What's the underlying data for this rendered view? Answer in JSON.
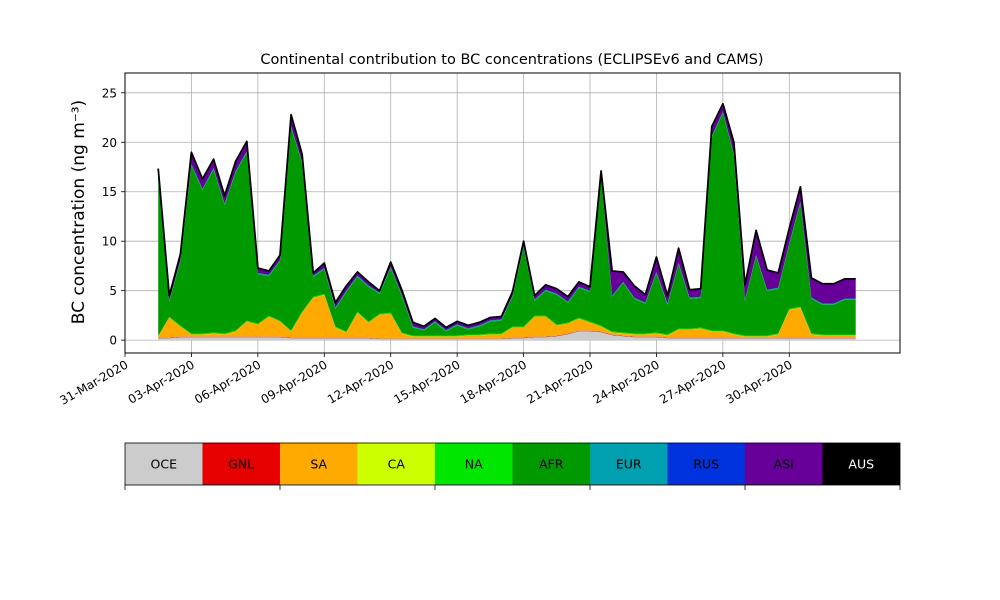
{
  "chart_data": {
    "type": "area",
    "stacked": true,
    "title": "Continental contribution to BC concentrations (ECLIPSEv6 and CAMS)",
    "ylabel": "BC concentration (ng m⁻³)",
    "xlabel": "",
    "ylim": [
      -1.3,
      27
    ],
    "yticks": [
      0,
      5,
      10,
      15,
      20,
      25
    ],
    "xlim": [
      "2020-03-31",
      "2020-05-05"
    ],
    "xticks": [
      "31-Mar-2020",
      "03-Apr-2020",
      "06-Apr-2020",
      "09-Apr-2020",
      "12-Apr-2020",
      "15-Apr-2020",
      "18-Apr-2020",
      "21-Apr-2020",
      "24-Apr-2020",
      "27-Apr-2020",
      "30-Apr-2020"
    ],
    "grid": true,
    "x": [
      "2020-04-01T12:00",
      "2020-04-02",
      "2020-04-02T12:00",
      "2020-04-03",
      "2020-04-03T12:00",
      "2020-04-04",
      "2020-04-04T12:00",
      "2020-04-05",
      "2020-04-05T12:00",
      "2020-04-06",
      "2020-04-06T12:00",
      "2020-04-07",
      "2020-04-07T12:00",
      "2020-04-08",
      "2020-04-08T12:00",
      "2020-04-09",
      "2020-04-09T12:00",
      "2020-04-10",
      "2020-04-10T12:00",
      "2020-04-11",
      "2020-04-11T12:00",
      "2020-04-12",
      "2020-04-12T12:00",
      "2020-04-13",
      "2020-04-13T12:00",
      "2020-04-14",
      "2020-04-14T12:00",
      "2020-04-15",
      "2020-04-15T12:00",
      "2020-04-16",
      "2020-04-16T12:00",
      "2020-04-17",
      "2020-04-17T12:00",
      "2020-04-18",
      "2020-04-18T12:00",
      "2020-04-19",
      "2020-04-19T12:00",
      "2020-04-20",
      "2020-04-20T12:00",
      "2020-04-21",
      "2020-04-21T12:00",
      "2020-04-22",
      "2020-04-22T12:00",
      "2020-04-23",
      "2020-04-23T12:00",
      "2020-04-24",
      "2020-04-24T12:00",
      "2020-04-25",
      "2020-04-25T12:00",
      "2020-04-26",
      "2020-04-26T12:00",
      "2020-04-27",
      "2020-04-27T12:00",
      "2020-04-28",
      "2020-04-28T12:00",
      "2020-04-29",
      "2020-04-29T12:00",
      "2020-04-30",
      "2020-04-30T12:00",
      "2020-05-01",
      "2020-05-01T12:00",
      "2020-05-02",
      "2020-05-02T12:00",
      "2020-05-03"
    ],
    "series": [
      {
        "name": "OCE",
        "color": "#cccccc",
        "values": [
          0.2,
          0.2,
          0.3,
          0.3,
          0.3,
          0.3,
          0.3,
          0.3,
          0.3,
          0.3,
          0.3,
          0.3,
          0.2,
          0.2,
          0.2,
          0.2,
          0.2,
          0.2,
          0.2,
          0.2,
          0.1,
          0.1,
          0.1,
          0.1,
          0.1,
          0.1,
          0.1,
          0.1,
          0.1,
          0.1,
          0.1,
          0.1,
          0.2,
          0.2,
          0.3,
          0.3,
          0.4,
          0.6,
          0.9,
          0.9,
          0.8,
          0.5,
          0.4,
          0.3,
          0.3,
          0.3,
          0.2,
          0.2,
          0.2,
          0.2,
          0.2,
          0.2,
          0.2,
          0.2,
          0.2,
          0.2,
          0.2,
          0.2,
          0.2,
          0.2,
          0.2,
          0.2,
          0.2,
          0.2
        ]
      },
      {
        "name": "GNL",
        "color": "#e60000",
        "values": [
          0.05,
          0.05,
          0.05,
          0.05,
          0.05,
          0.05,
          0.05,
          0.05,
          0.05,
          0.05,
          0.05,
          0.05,
          0.05,
          0.05,
          0.05,
          0.05,
          0.05,
          0.05,
          0.05,
          0.05,
          0.05,
          0.05,
          0.05,
          0.05,
          0.05,
          0.05,
          0.05,
          0.05,
          0.05,
          0.05,
          0.05,
          0.05,
          0.05,
          0.05,
          0.05,
          0.05,
          0.05,
          0.05,
          0.05,
          0.05,
          0.05,
          0.05,
          0.05,
          0.05,
          0.05,
          0.05,
          0.05,
          0.05,
          0.05,
          0.05,
          0.05,
          0.05,
          0.05,
          0.05,
          0.05,
          0.05,
          0.05,
          0.05,
          0.05,
          0.05,
          0.05,
          0.05,
          0.05,
          0.05
        ]
      },
      {
        "name": "SA",
        "color": "#ffaa00",
        "values": [
          0.1,
          2.0,
          1.0,
          0.2,
          0.2,
          0.3,
          0.2,
          0.5,
          1.5,
          1.2,
          2.0,
          1.5,
          0.6,
          2.5,
          4.0,
          4.3,
          1.0,
          0.5,
          2.5,
          1.5,
          2.4,
          2.5,
          0.5,
          0.2,
          0.2,
          0.2,
          0.2,
          0.2,
          0.3,
          0.3,
          0.4,
          0.4,
          1.0,
          1.0,
          2.0,
          2.0,
          1.0,
          1.0,
          1.2,
          0.8,
          0.5,
          0.2,
          0.2,
          0.2,
          0.2,
          0.3,
          0.2,
          0.8,
          0.8,
          0.9,
          0.6,
          0.6,
          0.3,
          0.1,
          0.1,
          0.1,
          0.3,
          2.8,
          3.0,
          0.3,
          0.2,
          0.2,
          0.2,
          0.2
        ]
      },
      {
        "name": "CA",
        "color": "#ccff00",
        "values": [
          0.02,
          0.02,
          0.02,
          0.02,
          0.02,
          0.02,
          0.02,
          0.02,
          0.02,
          0.02,
          0.02,
          0.02,
          0.02,
          0.02,
          0.02,
          0.02,
          0.02,
          0.02,
          0.02,
          0.02,
          0.02,
          0.02,
          0.02,
          0.02,
          0.02,
          0.02,
          0.02,
          0.02,
          0.02,
          0.02,
          0.02,
          0.02,
          0.02,
          0.02,
          0.02,
          0.02,
          0.02,
          0.02,
          0.02,
          0.02,
          0.02,
          0.02,
          0.02,
          0.02,
          0.02,
          0.02,
          0.02,
          0.02,
          0.02,
          0.02,
          0.02,
          0.02,
          0.02,
          0.02,
          0.02,
          0.02,
          0.02,
          0.02,
          0.02,
          0.02,
          0.02,
          0.02,
          0.02,
          0.02
        ]
      },
      {
        "name": "NA",
        "color": "#00e600",
        "values": [
          0.05,
          0.1,
          0.1,
          0.1,
          0.1,
          0.1,
          0.1,
          0.1,
          0.1,
          0.1,
          0.1,
          0.1,
          0.1,
          0.1,
          0.1,
          0.1,
          0.1,
          0.1,
          0.1,
          0.1,
          0.1,
          0.1,
          0.1,
          0.1,
          0.1,
          0.1,
          0.1,
          0.1,
          0.1,
          0.1,
          0.1,
          0.1,
          0.1,
          0.1,
          0.1,
          0.1,
          0.1,
          0.1,
          0.1,
          0.1,
          0.1,
          0.1,
          0.1,
          0.1,
          0.1,
          0.1,
          0.1,
          0.1,
          0.1,
          0.1,
          0.1,
          0.1,
          0.1,
          0.1,
          0.1,
          0.1,
          0.1,
          0.1,
          0.1,
          0.1,
          0.1,
          0.1,
          0.1,
          0.1
        ]
      },
      {
        "name": "AFR",
        "color": "#009900",
        "values": [
          16.0,
          1.5,
          6.5,
          17.0,
          14.5,
          16.5,
          13.0,
          16.0,
          17.0,
          5.0,
          4.0,
          6.0,
          20.5,
          15.0,
          2.0,
          2.5,
          1.8,
          4.0,
          3.5,
          3.5,
          2.0,
          4.5,
          3.7,
          0.8,
          0.5,
          1.3,
          0.4,
          1.0,
          0.5,
          0.8,
          1.2,
          1.3,
          3.0,
          8.0,
          1.5,
          2.5,
          3.0,
          2.0,
          3.0,
          3.0,
          15.0,
          3.5,
          5.0,
          3.5,
          3.0,
          6.0,
          3.0,
          6.5,
          3.0,
          3.0,
          19.5,
          22.0,
          18.0,
          3.5,
          8.0,
          4.5,
          4.5,
          6.5,
          10.5,
          3.5,
          3.0,
          3.0,
          3.5,
          3.5
        ]
      },
      {
        "name": "EUR",
        "color": "#00a0b0",
        "values": [
          0.1,
          0.1,
          0.1,
          0.1,
          0.1,
          0.1,
          0.1,
          0.1,
          0.1,
          0.1,
          0.1,
          0.1,
          0.1,
          0.1,
          0.1,
          0.1,
          0.1,
          0.1,
          0.1,
          0.1,
          0.1,
          0.1,
          0.1,
          0.1,
          0.1,
          0.1,
          0.1,
          0.1,
          0.1,
          0.1,
          0.1,
          0.1,
          0.1,
          0.1,
          0.1,
          0.1,
          0.1,
          0.1,
          0.1,
          0.1,
          0.1,
          0.1,
          0.1,
          0.1,
          0.1,
          0.1,
          0.1,
          0.1,
          0.1,
          0.1,
          0.1,
          0.1,
          0.1,
          0.1,
          0.1,
          0.1,
          0.1,
          0.1,
          0.1,
          0.1,
          0.1,
          0.1,
          0.1,
          0.1
        ]
      },
      {
        "name": "RUS",
        "color": "#0033dd",
        "values": [
          0.02,
          0.02,
          0.02,
          0.02,
          0.02,
          0.02,
          0.02,
          0.02,
          0.02,
          0.02,
          0.02,
          0.02,
          0.02,
          0.02,
          0.02,
          0.02,
          0.02,
          0.02,
          0.02,
          0.02,
          0.02,
          0.02,
          0.02,
          0.02,
          0.02,
          0.02,
          0.02,
          0.02,
          0.02,
          0.02,
          0.02,
          0.02,
          0.02,
          0.02,
          0.02,
          0.02,
          0.02,
          0.02,
          0.02,
          0.02,
          0.02,
          0.02,
          0.02,
          0.02,
          0.02,
          0.02,
          0.02,
          0.02,
          0.02,
          0.02,
          0.02,
          0.02,
          0.02,
          0.02,
          0.02,
          0.02,
          0.02,
          0.02,
          0.02,
          0.02,
          0.02,
          0.02,
          0.02,
          0.02
        ]
      },
      {
        "name": "ASI",
        "color": "#660099",
        "values": [
          0.8,
          0.5,
          0.6,
          1.2,
          1.0,
          0.9,
          0.8,
          1.0,
          1.0,
          0.5,
          0.4,
          0.5,
          1.2,
          0.8,
          0.3,
          0.5,
          0.5,
          0.5,
          0.4,
          0.4,
          0.2,
          0.5,
          0.5,
          0.4,
          0.3,
          0.3,
          0.3,
          0.3,
          0.3,
          0.3,
          0.3,
          0.3,
          0.4,
          0.5,
          0.4,
          0.5,
          0.5,
          0.5,
          0.5,
          0.4,
          0.5,
          2.5,
          1.0,
          1.2,
          0.8,
          1.5,
          0.8,
          1.5,
          0.8,
          0.8,
          1.0,
          0.8,
          1.2,
          1.5,
          2.5,
          2.0,
          1.5,
          1.5,
          1.5,
          2.0,
          2.0,
          2.0,
          2.0,
          2.0
        ]
      },
      {
        "name": "AUS",
        "color": "#000000",
        "values": [
          0,
          0,
          0,
          0,
          0,
          0,
          0,
          0,
          0,
          0,
          0,
          0,
          0,
          0,
          0,
          0,
          0,
          0,
          0,
          0,
          0,
          0,
          0,
          0,
          0,
          0,
          0,
          0,
          0,
          0,
          0,
          0,
          0,
          0,
          0,
          0,
          0,
          0,
          0,
          0,
          0,
          0,
          0,
          0,
          0,
          0,
          0,
          0,
          0,
          0,
          0,
          0,
          0,
          0,
          0,
          0,
          0,
          0,
          0,
          0,
          0,
          0,
          0,
          0
        ]
      }
    ],
    "legend": {
      "placement": "bottom",
      "labels": [
        "OCE",
        "GNL",
        "SA",
        "CA",
        "NA",
        "AFR",
        "EUR",
        "RUS",
        "ASI",
        "AUS"
      ],
      "colors": [
        "#cccccc",
        "#e60000",
        "#ffaa00",
        "#ccff00",
        "#00e600",
        "#009900",
        "#00a0b0",
        "#0033dd",
        "#660099",
        "#000000"
      ],
      "text_colors": [
        "#000000",
        "#000000",
        "#000000",
        "#000000",
        "#000000",
        "#000000",
        "#000000",
        "#000000",
        "#000000",
        "#ffffff"
      ]
    }
  }
}
